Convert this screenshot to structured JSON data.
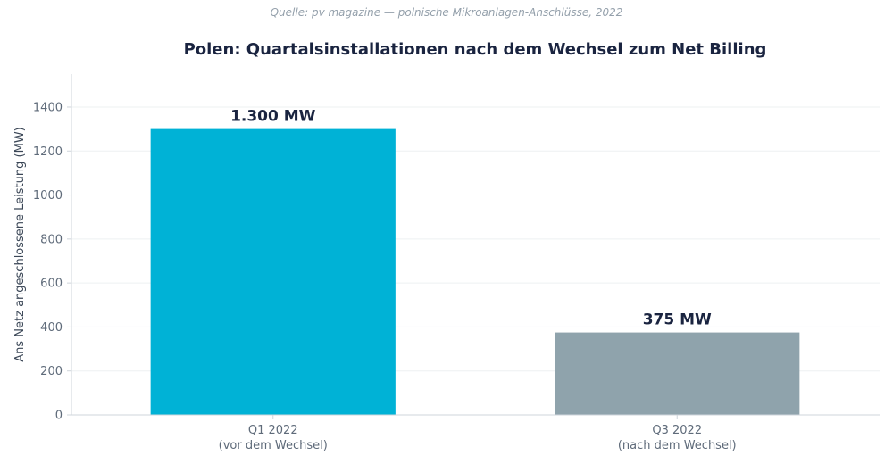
{
  "source": "Quelle: pv magazine — polnische Mikroanlagen-Anschlüsse, 2022",
  "chart_data": {
    "type": "bar",
    "title": "Polen: Quartalsinstallationen nach dem Wechsel zum Net Billing",
    "xlabel": "",
    "ylabel": "Ans Netz angeschlossene Leistung (MW)",
    "ylim": [
      0,
      1550
    ],
    "yticks": [
      0,
      200,
      400,
      600,
      800,
      1000,
      1200,
      1400
    ],
    "grid": true,
    "categories": [
      [
        "Q1 2022",
        "(vor dem Wechsel)"
      ],
      [
        "Q3 2022",
        "(nach dem Wechsel)"
      ]
    ],
    "values": [
      1300,
      375
    ],
    "data_labels": [
      "1.300 MW",
      "375 MW"
    ],
    "colors": [
      "#00b2d6",
      "#8fa3ac"
    ]
  }
}
